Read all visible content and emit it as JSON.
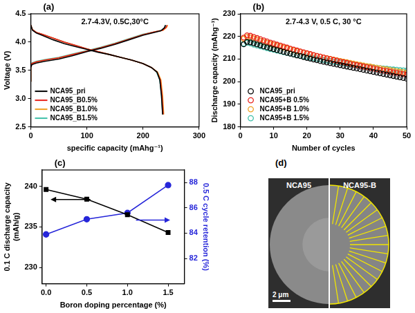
{
  "chart_data": [
    {
      "type": "line",
      "title": "(a)",
      "annotations": [
        "2.7-4.3V, 0.5C,30°C"
      ],
      "x_label": "specific capacity (mAhg⁻¹)",
      "y_label": "Voltage (V)",
      "xlim": [
        0,
        300
      ],
      "xticks": [
        0,
        100,
        200,
        300
      ],
      "ylim": [
        2.5,
        4.5
      ],
      "yticks": [
        2.5,
        {
          "value": 3,
          "label": "3.0"
        },
        3.5,
        {
          "value": 4,
          "label": "4.0"
        },
        4.5
      ],
      "grid": false,
      "legend": "lower left",
      "series": [
        {
          "name": "NCA95_pri",
          "color": "#000000",
          "marker": "none",
          "line_style": "solid",
          "x": [
            0,
            0,
            2,
            10,
            25,
            50,
            75,
            100,
            125,
            150,
            175,
            200,
            220,
            232,
            238,
            240,
            null,
            0,
            3,
            10,
            20,
            40,
            60,
            80,
            100,
            120,
            140,
            160,
            180,
            200,
            215,
            225,
            230,
            233,
            235
          ],
          "values": [
            3.3,
            3.55,
            3.6,
            3.63,
            3.66,
            3.7,
            3.76,
            3.83,
            3.89,
            3.96,
            4.04,
            4.12,
            4.17,
            4.2,
            4.25,
            4.3,
            null,
            4.3,
            4.21,
            4.16,
            4.12,
            4.04,
            3.97,
            3.92,
            3.87,
            3.82,
            3.78,
            3.73,
            3.68,
            3.62,
            3.55,
            3.47,
            3.33,
            3.05,
            2.72
          ]
        },
        {
          "name": "NCA95_B0.5%",
          "color": "#e8221b",
          "marker": "none",
          "line_style": "solid",
          "x": [
            0,
            0,
            2,
            10,
            25,
            50,
            75,
            100,
            125,
            150,
            175,
            200,
            220,
            235,
            241,
            243,
            null,
            0,
            3,
            10,
            20,
            40,
            60,
            80,
            100,
            120,
            140,
            160,
            180,
            200,
            215,
            225,
            231,
            234,
            236
          ],
          "values": [
            3.3,
            3.57,
            3.62,
            3.65,
            3.68,
            3.72,
            3.78,
            3.84,
            3.9,
            3.97,
            4.05,
            4.13,
            4.18,
            4.21,
            4.26,
            4.3,
            null,
            4.3,
            4.22,
            4.17,
            4.14,
            4.07,
            4.0,
            3.94,
            3.88,
            3.83,
            3.78,
            3.73,
            3.68,
            3.62,
            3.55,
            3.47,
            3.33,
            3.05,
            2.72
          ]
        },
        {
          "name": "NCA95_B1.0%",
          "color": "#f0a020",
          "marker": "none",
          "line_style": "solid",
          "x": [
            0,
            0,
            2,
            10,
            25,
            50,
            75,
            100,
            125,
            150,
            175,
            200,
            220,
            236,
            242,
            244,
            null,
            0,
            3,
            10,
            20,
            40,
            60,
            80,
            100,
            120,
            140,
            160,
            180,
            200,
            215,
            226,
            232,
            235,
            237
          ],
          "values": [
            3.3,
            3.57,
            3.62,
            3.65,
            3.68,
            3.72,
            3.78,
            3.84,
            3.9,
            3.97,
            4.05,
            4.13,
            4.18,
            4.21,
            4.26,
            4.3,
            null,
            4.3,
            4.22,
            4.17,
            4.14,
            4.07,
            4.0,
            3.94,
            3.88,
            3.83,
            3.78,
            3.73,
            3.68,
            3.62,
            3.55,
            3.47,
            3.33,
            3.05,
            2.72
          ]
        },
        {
          "name": "NCA95_B1.5%",
          "color": "#3dbfa8",
          "marker": "none",
          "line_style": "solid",
          "x": [
            0,
            0,
            2,
            10,
            25,
            50,
            75,
            100,
            125,
            150,
            175,
            200,
            220,
            233,
            239,
            241,
            null,
            0,
            3,
            10,
            20,
            40,
            60,
            80,
            100,
            120,
            140,
            160,
            180,
            200,
            215,
            224,
            230,
            233,
            235
          ],
          "values": [
            3.3,
            3.58,
            3.63,
            3.66,
            3.69,
            3.73,
            3.79,
            3.85,
            3.91,
            3.98,
            4.06,
            4.14,
            4.18,
            4.21,
            4.26,
            4.3,
            null,
            4.3,
            4.22,
            4.17,
            4.14,
            4.07,
            4.0,
            3.94,
            3.88,
            3.83,
            3.78,
            3.73,
            3.68,
            3.62,
            3.55,
            3.47,
            3.33,
            3.05,
            2.72
          ]
        }
      ]
    },
    {
      "type": "scatter",
      "title": "(b)",
      "annotations": [
        "2.7-4.3 V, 0.5 C, 30 °C"
      ],
      "x_label": "Number of cycles",
      "y_label": "Discharge capacity (mAhg⁻¹)",
      "xlim": [
        0,
        50
      ],
      "xticks": [
        0,
        10,
        20,
        30,
        40,
        50
      ],
      "ylim": [
        180,
        230
      ],
      "yticks": [
        180,
        190,
        200,
        210,
        220,
        230
      ],
      "grid": false,
      "legend": "lower left",
      "x": [
        1,
        2,
        3,
        4,
        5,
        6,
        7,
        8,
        9,
        10,
        11,
        12,
        13,
        14,
        15,
        16,
        17,
        18,
        19,
        20,
        21,
        22,
        23,
        24,
        25,
        26,
        27,
        28,
        29,
        30,
        31,
        32,
        33,
        34,
        35,
        36,
        37,
        38,
        39,
        40,
        41,
        42,
        43,
        44,
        45,
        46,
        47,
        48,
        49,
        50
      ],
      "series": [
        {
          "name": "NCA95_pri",
          "color": "#000000",
          "marker": "open_circle",
          "line_style": "none",
          "values": [
            216.5,
            217.6,
            217.4,
            217.0,
            216.5,
            216.1,
            215.6,
            215.2,
            214.8,
            214.4,
            214.0,
            213.6,
            213.2,
            212.8,
            212.4,
            212.0,
            211.6,
            211.3,
            210.9,
            210.5,
            210.2,
            209.8,
            209.5,
            209.1,
            208.8,
            208.5,
            208.2,
            207.9,
            207.6,
            207.3,
            207.0,
            206.7,
            206.4,
            206.1,
            205.8,
            205.5,
            205.2,
            204.9,
            204.6,
            204.3,
            204.0,
            203.7,
            203.4,
            203.1,
            202.8,
            202.5,
            202.2,
            201.9,
            201.6,
            201.3
          ]
        },
        {
          "name": "NCA95+B 0.5%",
          "color": "#e8221b",
          "marker": "open_circle",
          "line_style": "none",
          "values": [
            219.5,
            220.5,
            220.3,
            219.8,
            219.3,
            218.8,
            218.3,
            217.8,
            217.3,
            216.9,
            216.4,
            216.0,
            215.5,
            215.1,
            214.6,
            214.2,
            213.8,
            213.4,
            213.0,
            212.6,
            212.2,
            211.8,
            211.4,
            211.1,
            210.7,
            210.3,
            210.0,
            209.6,
            209.3,
            208.9,
            208.6,
            208.3,
            207.9,
            207.6,
            207.3,
            207.0,
            206.7,
            206.4,
            206.1,
            205.8,
            205.5,
            205.2,
            204.9,
            204.7,
            204.4,
            204.1,
            203.9,
            203.6,
            203.4,
            203.1
          ]
        },
        {
          "name": "NCA95+B 1.0%",
          "color": "#f0a020",
          "marker": "open_circle",
          "line_style": "none",
          "values": [
            219.0,
            219.8,
            219.6,
            219.1,
            218.6,
            218.1,
            217.6,
            217.2,
            216.7,
            216.3,
            215.9,
            215.5,
            215.1,
            214.7,
            214.3,
            213.9,
            213.5,
            213.2,
            212.8,
            212.4,
            212.1,
            211.7,
            211.4,
            211.1,
            210.7,
            210.4,
            210.1,
            209.8,
            209.5,
            209.2,
            208.9,
            208.6,
            208.3,
            208.0,
            207.7,
            207.5,
            207.2,
            206.9,
            206.7,
            206.4,
            206.1,
            205.9,
            205.6,
            205.4,
            205.1,
            204.9,
            204.6,
            204.4,
            204.2,
            203.9
          ]
        },
        {
          "name": "NCA95+B 1.5%",
          "color": "#3dbfa8",
          "marker": "open_circle",
          "line_style": "none",
          "values": [
            216.8,
            217.2,
            216.9,
            216.4,
            216.0,
            215.6,
            215.2,
            214.8,
            214.4,
            214.1,
            213.7,
            213.4,
            213.0,
            212.7,
            212.4,
            212.1,
            211.8,
            211.5,
            211.2,
            210.9,
            210.6,
            210.4,
            210.1,
            209.8,
            209.6,
            209.3,
            209.1,
            208.8,
            208.6,
            208.4,
            208.2,
            207.9,
            207.7,
            207.5,
            207.3,
            207.1,
            206.9,
            206.7,
            206.5,
            206.3,
            206.2,
            206.0,
            205.8,
            205.7,
            205.5,
            205.4,
            205.3,
            205.1,
            205.0,
            204.9
          ]
        }
      ]
    },
    {
      "type": "line",
      "title": "(c)",
      "x_label": "Boron doping percentage (%)",
      "y_label": [
        "0.1 C discharge capacity",
        "(mAh/g)"
      ],
      "y2_label": "0.5 C cycle retention (%)",
      "xlim": [
        -0.05,
        1.7
      ],
      "xticks": [
        {
          "value": 0,
          "label": "0.0"
        },
        0.5,
        {
          "value": 1,
          "label": "1.0"
        },
        1.5
      ],
      "ylim": [
        228,
        242
      ],
      "yticks": [
        230,
        235,
        240
      ],
      "y2lim": [
        80,
        89
      ],
      "y2ticks": [
        82,
        84,
        86,
        88
      ],
      "grid": false,
      "x": [
        0,
        0.5,
        1.0,
        1.5
      ],
      "series": [
        {
          "name": "0.1 C discharge capacity",
          "color": "#000000",
          "marker": "square",
          "line_style": "solid",
          "values": [
            239.6,
            238.4,
            236.5,
            234.3
          ]
        },
        {
          "name": "0.5 C cycle retention",
          "color": "#2626d9",
          "marker": "circle",
          "line_style": "solid",
          "axis": "y2",
          "values": [
            83.9,
            85.1,
            85.6,
            87.8
          ]
        }
      ]
    }
  ],
  "image": {
    "title": "(d)",
    "labels": [
      "NCA95",
      "NCA95-B"
    ],
    "scale_bar": "2 μm"
  }
}
